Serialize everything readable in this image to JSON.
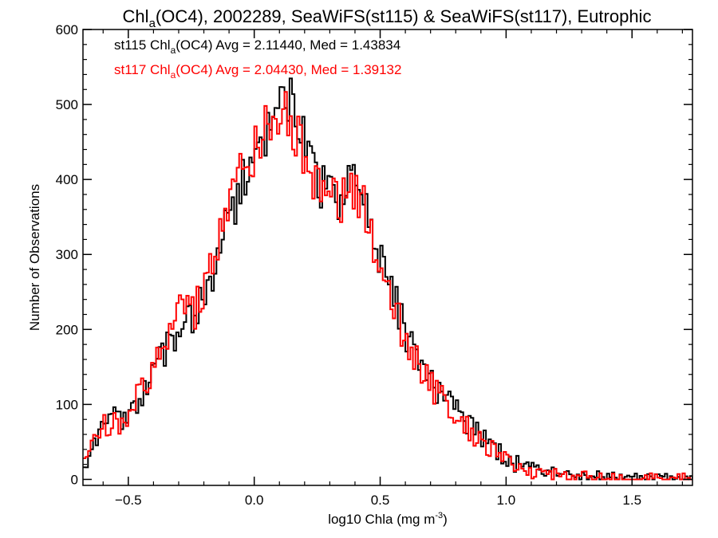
{
  "chart_data": {
    "type": "line",
    "title": {
      "pre": "Chl",
      "sub": "a",
      "post": "(OC4), 2002289, SeaWiFS(st115) & SeaWiFS(st117), Eutrophic"
    },
    "xlabel": {
      "pre": "log10 Chla (mg m",
      "sup": "-3",
      "post": ")"
    },
    "ylabel": "Number of Observations",
    "xlim": [
      -0.68,
      1.74
    ],
    "ylim": [
      -8,
      600
    ],
    "xticks": [
      {
        "value": -0.5,
        "label": "−0.5"
      },
      {
        "value": 0.0,
        "label": "0.0"
      },
      {
        "value": 0.5,
        "label": "0.5"
      },
      {
        "value": 1.0,
        "label": "1.0"
      },
      {
        "value": 1.5,
        "label": "1.5"
      }
    ],
    "yticks": [
      {
        "value": 0,
        "label": "0"
      },
      {
        "value": 100,
        "label": "100"
      },
      {
        "value": 200,
        "label": "200"
      },
      {
        "value": 300,
        "label": "300"
      },
      {
        "value": 400,
        "label": "400"
      },
      {
        "value": 500,
        "label": "500"
      },
      {
        "value": 600,
        "label": "600"
      }
    ],
    "grid": false,
    "legend_position": "top-left",
    "series": [
      {
        "name": "st115",
        "color": "#000000",
        "legend": {
          "pre": "st115 Chl",
          "sub": "a",
          "post": "(OC4) Avg = 2.11440, Med = 1.43834"
        },
        "points": [
          [
            -0.68,
            20
          ],
          [
            -0.65,
            45
          ],
          [
            -0.62,
            60
          ],
          [
            -0.6,
            72
          ],
          [
            -0.58,
            85
          ],
          [
            -0.55,
            82
          ],
          [
            -0.52,
            80
          ],
          [
            -0.5,
            80
          ],
          [
            -0.48,
            95
          ],
          [
            -0.45,
            118
          ],
          [
            -0.42,
            130
          ],
          [
            -0.4,
            140
          ],
          [
            -0.38,
            155
          ],
          [
            -0.35,
            175
          ],
          [
            -0.32,
            195
          ],
          [
            -0.3,
            215
          ],
          [
            -0.28,
            225
          ],
          [
            -0.26,
            222
          ],
          [
            -0.24,
            210
          ],
          [
            -0.22,
            235
          ],
          [
            -0.2,
            250
          ],
          [
            -0.18,
            268
          ],
          [
            -0.16,
            285
          ],
          [
            -0.14,
            305
          ],
          [
            -0.12,
            330
          ],
          [
            -0.1,
            350
          ],
          [
            -0.08,
            370
          ],
          [
            -0.06,
            390
          ],
          [
            -0.04,
            400
          ],
          [
            -0.02,
            412
          ],
          [
            0.0,
            425
          ],
          [
            0.02,
            440
          ],
          [
            0.04,
            455
          ],
          [
            0.06,
            470
          ],
          [
            0.08,
            480
          ],
          [
            0.1,
            490
          ],
          [
            0.12,
            495
          ],
          [
            0.14,
            500
          ],
          [
            0.16,
            480
          ],
          [
            0.18,
            460
          ],
          [
            0.2,
            445
          ],
          [
            0.22,
            420
          ],
          [
            0.24,
            405
          ],
          [
            0.26,
            392
          ],
          [
            0.28,
            385
          ],
          [
            0.3,
            378
          ],
          [
            0.32,
            376
          ],
          [
            0.34,
            378
          ],
          [
            0.36,
            385
          ],
          [
            0.38,
            390
          ],
          [
            0.4,
            392
          ],
          [
            0.42,
            380
          ],
          [
            0.44,
            362
          ],
          [
            0.46,
            335
          ],
          [
            0.48,
            305
          ],
          [
            0.5,
            290
          ],
          [
            0.52,
            272
          ],
          [
            0.54,
            252
          ],
          [
            0.56,
            232
          ],
          [
            0.58,
            212
          ],
          [
            0.6,
            190
          ],
          [
            0.62,
            178
          ],
          [
            0.64,
            165
          ],
          [
            0.66,
            150
          ],
          [
            0.68,
            140
          ],
          [
            0.7,
            132
          ],
          [
            0.72,
            122
          ],
          [
            0.74,
            112
          ],
          [
            0.76,
            105
          ],
          [
            0.78,
            100
          ],
          [
            0.8,
            95
          ],
          [
            0.82,
            88
          ],
          [
            0.84,
            78
          ],
          [
            0.86,
            70
          ],
          [
            0.88,
            62
          ],
          [
            0.9,
            56
          ],
          [
            0.92,
            50
          ],
          [
            0.94,
            45
          ],
          [
            0.96,
            38
          ],
          [
            0.98,
            32
          ],
          [
            1.0,
            26
          ],
          [
            1.02,
            22
          ],
          [
            1.04,
            20
          ],
          [
            1.06,
            17
          ],
          [
            1.08,
            14
          ],
          [
            1.1,
            12
          ],
          [
            1.12,
            10
          ],
          [
            1.14,
            9
          ],
          [
            1.16,
            8
          ],
          [
            1.18,
            7
          ],
          [
            1.2,
            6
          ],
          [
            1.25,
            5
          ],
          [
            1.3,
            4
          ],
          [
            1.35,
            3
          ],
          [
            1.4,
            3
          ],
          [
            1.45,
            2
          ],
          [
            1.5,
            2
          ],
          [
            1.55,
            1
          ],
          [
            1.6,
            1
          ],
          [
            1.65,
            1
          ],
          [
            1.7,
            1
          ],
          [
            1.74,
            0
          ]
        ]
      },
      {
        "name": "st117",
        "color": "#ff0000",
        "legend": {
          "pre": "st117 Chl",
          "sub": "a",
          "post": "(OC4) Avg = 2.04430, Med = 1.39132"
        },
        "points": [
          [
            -0.68,
            22
          ],
          [
            -0.65,
            48
          ],
          [
            -0.62,
            62
          ],
          [
            -0.6,
            70
          ],
          [
            -0.58,
            75
          ],
          [
            -0.55,
            78
          ],
          [
            -0.52,
            76
          ],
          [
            -0.5,
            78
          ],
          [
            -0.48,
            100
          ],
          [
            -0.45,
            125
          ],
          [
            -0.42,
            140
          ],
          [
            -0.4,
            150
          ],
          [
            -0.38,
            165
          ],
          [
            -0.35,
            185
          ],
          [
            -0.32,
            205
          ],
          [
            -0.3,
            225
          ],
          [
            -0.28,
            235
          ],
          [
            -0.26,
            232
          ],
          [
            -0.24,
            220
          ],
          [
            -0.22,
            245
          ],
          [
            -0.2,
            262
          ],
          [
            -0.18,
            280
          ],
          [
            -0.16,
            298
          ],
          [
            -0.14,
            320
          ],
          [
            -0.12,
            345
          ],
          [
            -0.1,
            365
          ],
          [
            -0.08,
            385
          ],
          [
            -0.06,
            405
          ],
          [
            -0.04,
            415
          ],
          [
            -0.02,
            428
          ],
          [
            0.0,
            440
          ],
          [
            0.02,
            452
          ],
          [
            0.04,
            466
          ],
          [
            0.06,
            478
          ],
          [
            0.08,
            490
          ],
          [
            0.1,
            498
          ],
          [
            0.12,
            490
          ],
          [
            0.14,
            478
          ],
          [
            0.16,
            462
          ],
          [
            0.18,
            448
          ],
          [
            0.2,
            435
          ],
          [
            0.22,
            412
          ],
          [
            0.24,
            398
          ],
          [
            0.26,
            388
          ],
          [
            0.28,
            382
          ],
          [
            0.3,
            375
          ],
          [
            0.32,
            372
          ],
          [
            0.34,
            374
          ],
          [
            0.36,
            380
          ],
          [
            0.38,
            384
          ],
          [
            0.4,
            385
          ],
          [
            0.42,
            372
          ],
          [
            0.44,
            352
          ],
          [
            0.46,
            325
          ],
          [
            0.48,
            298
          ],
          [
            0.5,
            282
          ],
          [
            0.52,
            262
          ],
          [
            0.54,
            242
          ],
          [
            0.56,
            222
          ],
          [
            0.58,
            202
          ],
          [
            0.6,
            182
          ],
          [
            0.62,
            170
          ],
          [
            0.64,
            158
          ],
          [
            0.66,
            143
          ],
          [
            0.68,
            133
          ],
          [
            0.7,
            125
          ],
          [
            0.72,
            115
          ],
          [
            0.74,
            106
          ],
          [
            0.76,
            98
          ],
          [
            0.78,
            93
          ],
          [
            0.8,
            88
          ],
          [
            0.82,
            80
          ],
          [
            0.84,
            70
          ],
          [
            0.86,
            62
          ],
          [
            0.88,
            55
          ],
          [
            0.9,
            49
          ],
          [
            0.92,
            43
          ],
          [
            0.94,
            38
          ],
          [
            0.96,
            32
          ],
          [
            0.98,
            27
          ],
          [
            1.0,
            22
          ],
          [
            1.02,
            19
          ],
          [
            1.04,
            17
          ],
          [
            1.06,
            14
          ],
          [
            1.08,
            12
          ],
          [
            1.1,
            10
          ],
          [
            1.12,
            8
          ],
          [
            1.14,
            7
          ],
          [
            1.16,
            6
          ],
          [
            1.18,
            6
          ],
          [
            1.2,
            5
          ],
          [
            1.25,
            4
          ],
          [
            1.3,
            3
          ],
          [
            1.35,
            3
          ],
          [
            1.4,
            2
          ],
          [
            1.45,
            2
          ],
          [
            1.5,
            2
          ],
          [
            1.55,
            1
          ],
          [
            1.6,
            1
          ],
          [
            1.65,
            1
          ],
          [
            1.7,
            1
          ],
          [
            1.74,
            0
          ]
        ]
      }
    ]
  }
}
